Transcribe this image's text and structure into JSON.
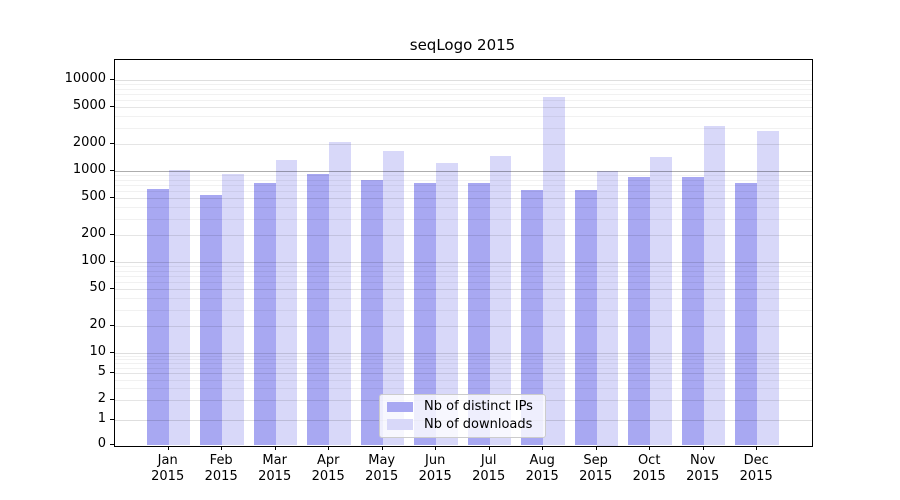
{
  "chart_data": {
    "type": "bar",
    "title": "seqLogo 2015",
    "categories": [
      "Jan",
      "Feb",
      "Mar",
      "Apr",
      "May",
      "Jun",
      "Jul",
      "Aug",
      "Sep",
      "Oct",
      "Nov",
      "Dec"
    ],
    "year_label": "2015",
    "series": [
      {
        "name": "Nb of distinct IPs",
        "color": "#a8a8f2",
        "values": [
          640,
          550,
          740,
          930,
          800,
          740,
          730,
          620,
          620,
          870,
          850,
          730
        ]
      },
      {
        "name": "Nb of downloads",
        "color": "#d8d8f9",
        "values": [
          1020,
          920,
          1310,
          2100,
          1640,
          1230,
          1470,
          6500,
          1000,
          1440,
          3100,
          2750
        ]
      }
    ],
    "y_ticks": [
      0,
      1,
      2,
      5,
      10,
      20,
      50,
      100,
      200,
      500,
      1000,
      2000,
      5000,
      10000
    ],
    "yscale": "symlog",
    "ylim": [
      0,
      16000
    ],
    "grid": "horizontal",
    "legend_position": "lower-center-inside",
    "background_color": "#ffffff",
    "grid_accent_value": 1000
  }
}
